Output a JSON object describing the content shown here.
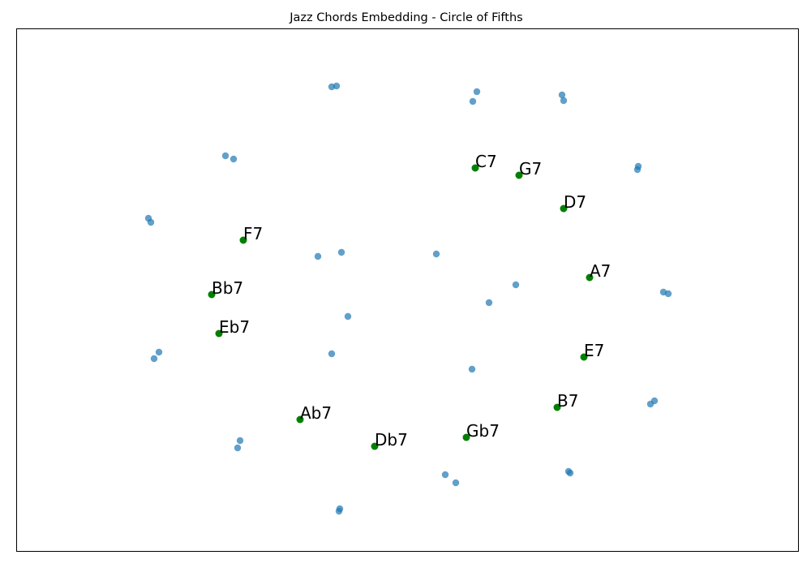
{
  "chart_data": {
    "type": "scatter",
    "title": "Jazz Chords Embedding - Circle of Fifths",
    "xlabel": "",
    "ylabel": "",
    "xlim": [
      20,
      985
    ],
    "ylim": [
      680,
      35
    ],
    "grid": false,
    "axis_ticks": false,
    "series": [
      {
        "role": "background",
        "color": "#1f77b4",
        "opacity": 0.7,
        "points": [
          {
            "x": 409,
            "y": 107
          },
          {
            "x": 415,
            "y": 106
          },
          {
            "x": 588,
            "y": 113
          },
          {
            "x": 583,
            "y": 125
          },
          {
            "x": 693,
            "y": 117
          },
          {
            "x": 695,
            "y": 124
          },
          {
            "x": 278,
            "y": 192
          },
          {
            "x": 288,
            "y": 196
          },
          {
            "x": 787,
            "y": 205
          },
          {
            "x": 786,
            "y": 209
          },
          {
            "x": 183,
            "y": 269
          },
          {
            "x": 186,
            "y": 274
          },
          {
            "x": 392,
            "y": 316
          },
          {
            "x": 421,
            "y": 311
          },
          {
            "x": 538,
            "y": 313
          },
          {
            "x": 636,
            "y": 351
          },
          {
            "x": 603,
            "y": 373
          },
          {
            "x": 818,
            "y": 360
          },
          {
            "x": 824,
            "y": 362
          },
          {
            "x": 429,
            "y": 390
          },
          {
            "x": 196,
            "y": 434
          },
          {
            "x": 190,
            "y": 442
          },
          {
            "x": 409,
            "y": 436
          },
          {
            "x": 582,
            "y": 455
          },
          {
            "x": 807,
            "y": 494
          },
          {
            "x": 802,
            "y": 498
          },
          {
            "x": 296,
            "y": 543
          },
          {
            "x": 293,
            "y": 552
          },
          {
            "x": 549,
            "y": 585
          },
          {
            "x": 562,
            "y": 595
          },
          {
            "x": 701,
            "y": 581
          },
          {
            "x": 703,
            "y": 583
          },
          {
            "x": 419,
            "y": 627
          },
          {
            "x": 418,
            "y": 630
          }
        ]
      },
      {
        "role": "highlighted",
        "color": "#008000",
        "points": [
          {
            "label": "C7",
            "x": 586,
            "y": 207
          },
          {
            "label": "G7",
            "x": 640,
            "y": 216
          },
          {
            "label": "D7",
            "x": 695,
            "y": 257
          },
          {
            "label": "A7",
            "x": 727,
            "y": 342
          },
          {
            "label": "E7",
            "x": 720,
            "y": 440
          },
          {
            "label": "B7",
            "x": 687,
            "y": 502
          },
          {
            "label": "Gb7",
            "x": 575,
            "y": 539
          },
          {
            "label": "Db7",
            "x": 462,
            "y": 550
          },
          {
            "label": "Ab7",
            "x": 370,
            "y": 517
          },
          {
            "label": "Eb7",
            "x": 270,
            "y": 411
          },
          {
            "label": "Bb7",
            "x": 261,
            "y": 363
          },
          {
            "label": "F7",
            "x": 300,
            "y": 296
          }
        ]
      }
    ]
  }
}
